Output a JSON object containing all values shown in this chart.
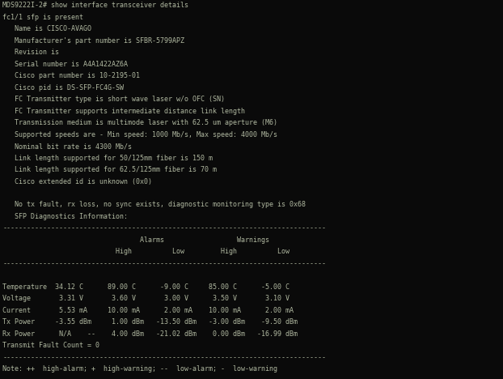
{
  "bg_color": "#0a0a0a",
  "text_color": "#b0b8a0",
  "fig_width": 6.22,
  "fig_height": 4.68,
  "dpi": 100,
  "font_size": 6.0,
  "lines": [
    "MDS9222I-2# show interface transceiver details",
    "fc1/1 sfp is present",
    "   Name is CISCO-AVAGO",
    "   Manufacturer's part number is SFBR-5799APZ",
    "   Revision is",
    "   Serial number is A4A1422AZ6A",
    "   Cisco part number is 10-2195-01",
    "   Cisco pid is DS-SFP-FC4G-SW",
    "   FC Transmitter type is short wave laser w/o OFC (SN)",
    "   FC Transmitter supports intermediate distance link length",
    "   Transmission medium is multimode laser with 62.5 um aperture (M6)",
    "   Supported speeds are - Min speed: 1000 Mb/s, Max speed: 4000 Mb/s",
    "   Nominal bit rate is 4300 Mb/s",
    "   Link length supported for 50/125mm fiber is 150 m",
    "   Link length supported for 62.5/125mm fiber is 70 m",
    "   Cisco extended id is unknown (0x0)",
    "",
    "   No tx fault, rx loss, no sync exists, diagnostic monitoring type is 0x68",
    "   SFP Diagnostics Information:",
    "--------------------------------------------------------------------------------",
    "                                  Alarms                  Warnings",
    "                            High          Low         High          Low",
    "--------------------------------------------------------------------------------",
    "",
    "Temperature  34.12 C      89.00 C      -9.00 C     85.00 C      -5.00 C",
    "Voltage       3.31 V       3.60 V       3.00 V      3.50 V       3.10 V",
    "Current       5.53 mA     10.00 mA      2.00 mA    10.00 mA      2.00 mA",
    "Tx Power     -3.55 dBm     1.00 dBm   -13.50 dBm   -3.00 dBm    -9.50 dBm",
    "Rx Power      N/A    --    4.00 dBm   -21.02 dBm    0.00 dBm   -16.99 dBm",
    "Transmit Fault Count = 0",
    "--------------------------------------------------------------------------------",
    "Note: ++  high-alarm; +  high-warning; --  low-alarm; -  low-warning"
  ]
}
